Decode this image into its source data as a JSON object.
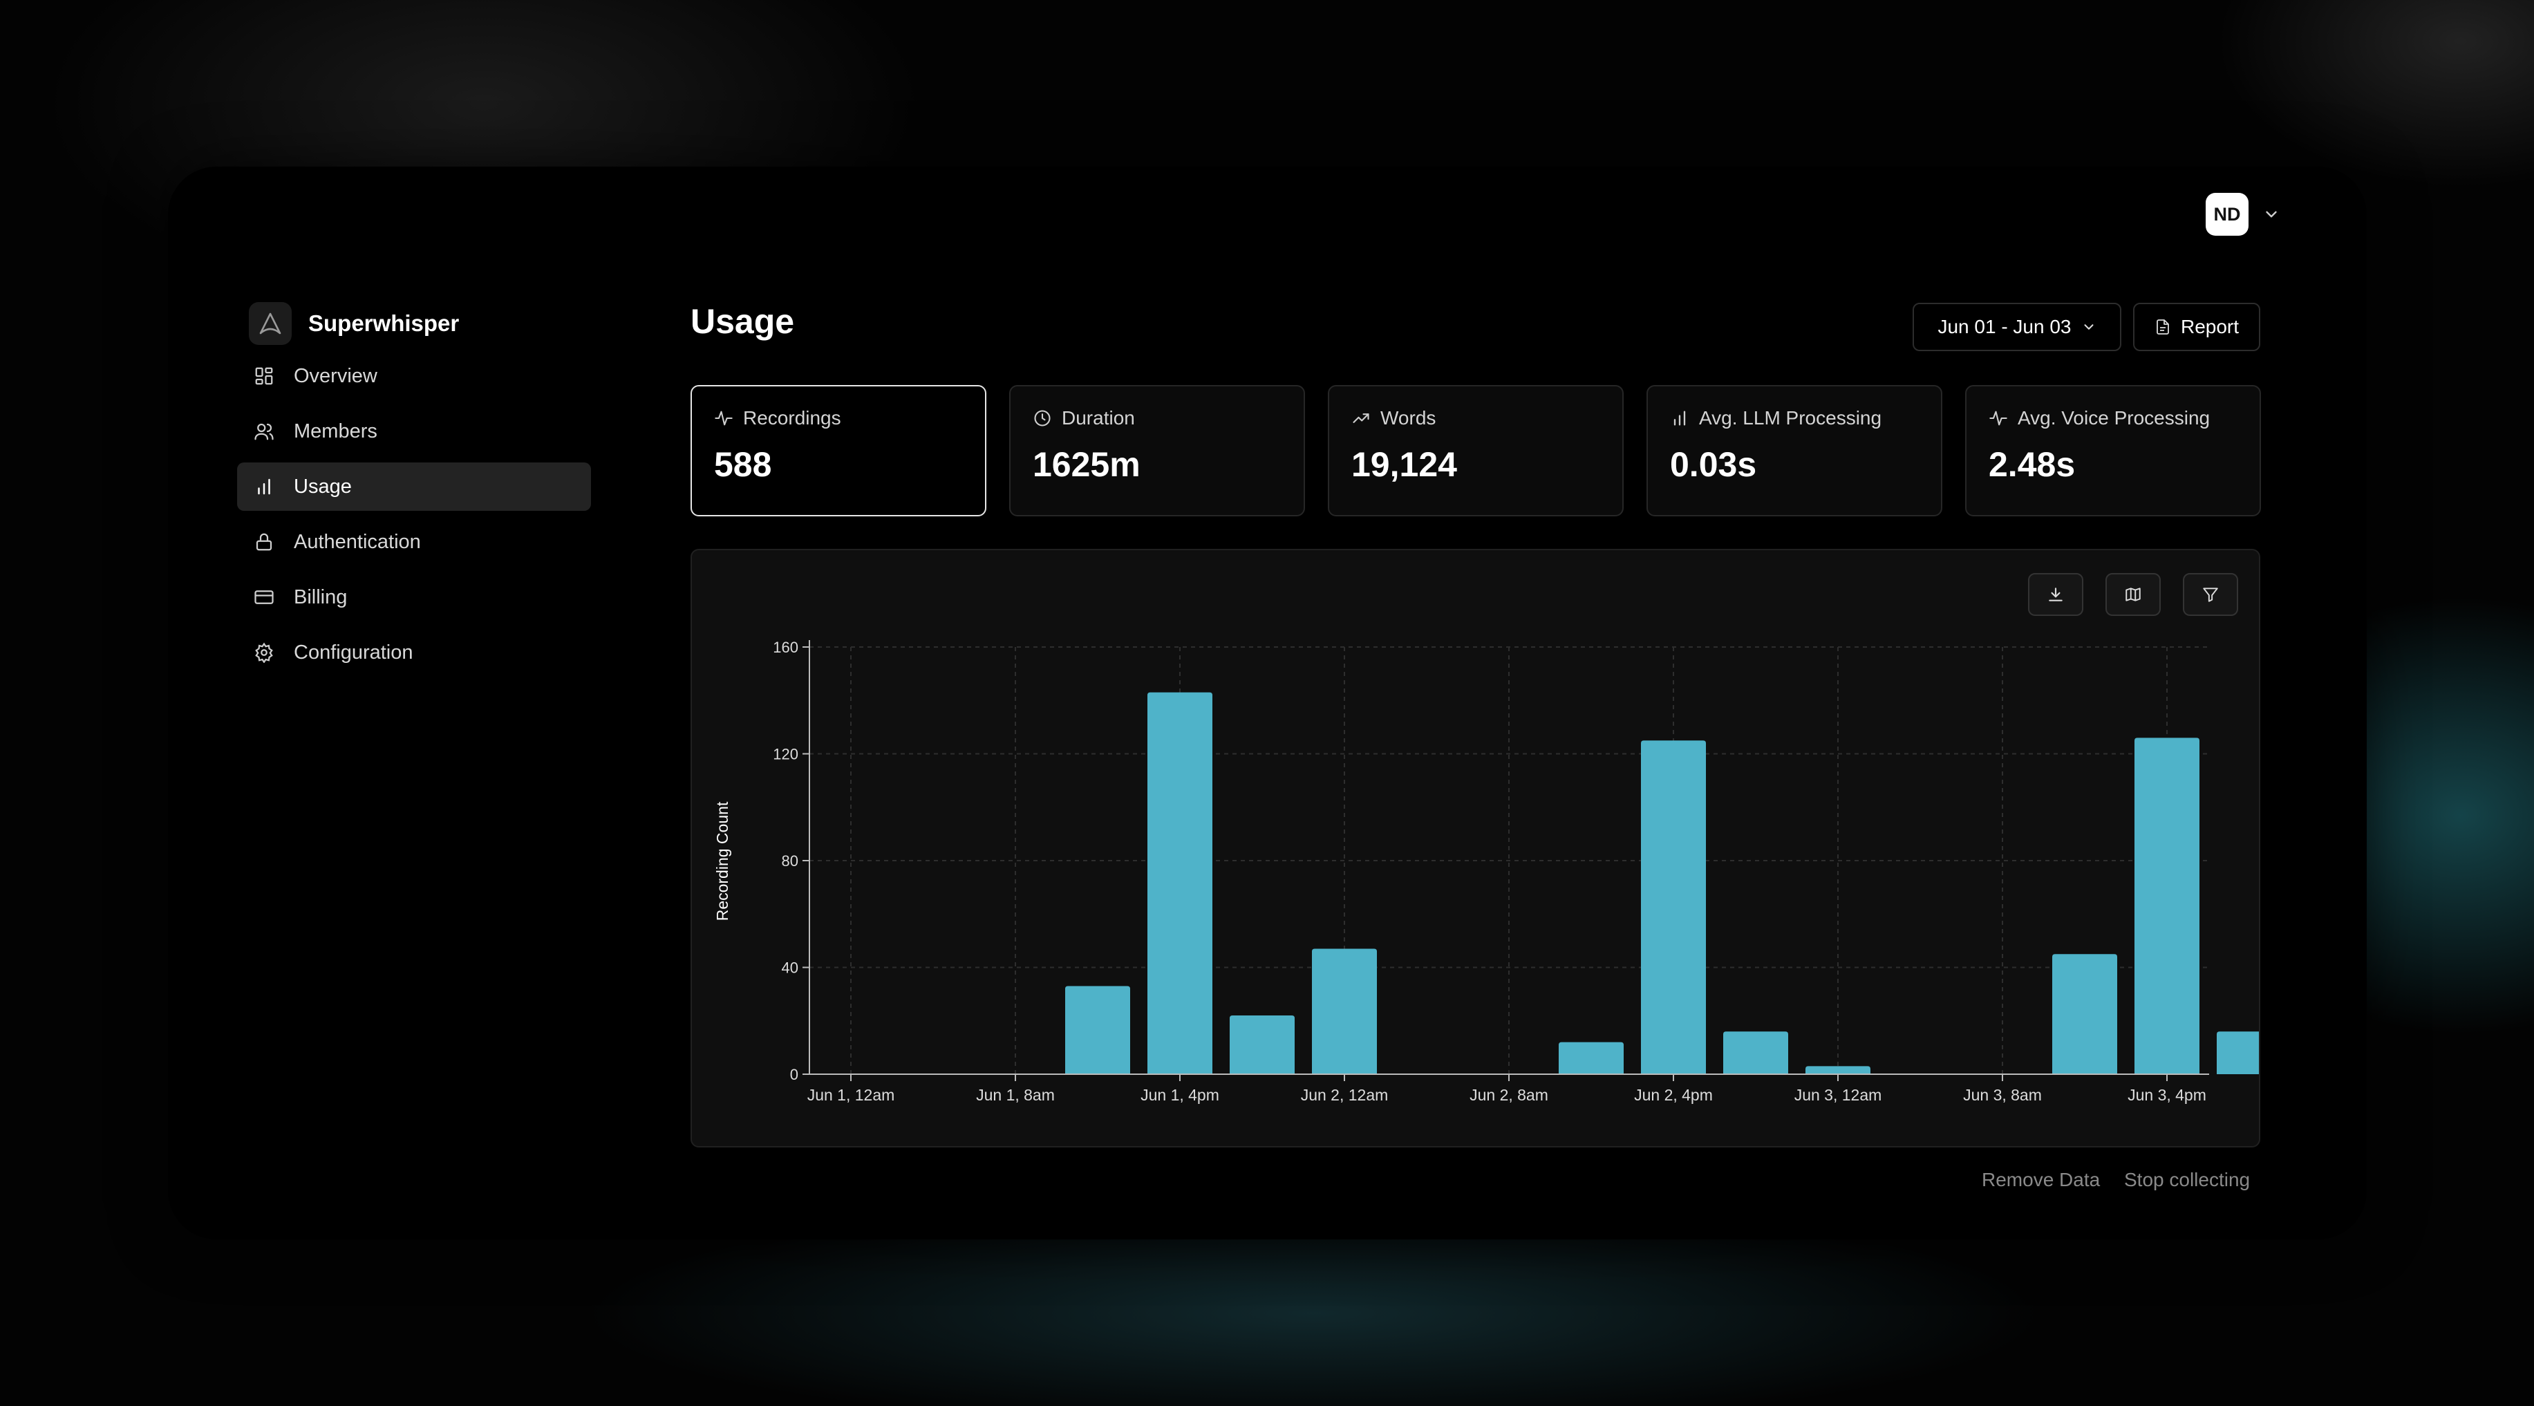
{
  "account": {
    "initials": "ND"
  },
  "brand": {
    "name": "Superwhisper"
  },
  "sidebar": {
    "items": [
      {
        "label": "Overview",
        "icon": "grid-icon",
        "active": false
      },
      {
        "label": "Members",
        "icon": "users-icon",
        "active": false
      },
      {
        "label": "Usage",
        "icon": "bar-chart-icon",
        "active": true
      },
      {
        "label": "Authentication",
        "icon": "lock-icon",
        "active": false
      },
      {
        "label": "Billing",
        "icon": "credit-card-icon",
        "active": false
      },
      {
        "label": "Configuration",
        "icon": "gear-icon",
        "active": false
      }
    ]
  },
  "header": {
    "title": "Usage",
    "date_range": "Jun 01 - Jun 03",
    "report_label": "Report"
  },
  "stats": [
    {
      "label": "Recordings",
      "value": "588",
      "icon": "activity-icon",
      "selected": true
    },
    {
      "label": "Duration",
      "value": "1625m",
      "icon": "clock-icon",
      "selected": false
    },
    {
      "label": "Words",
      "value": "19,124",
      "icon": "trending-up-icon",
      "selected": false
    },
    {
      "label": "Avg. LLM Processing",
      "value": "0.03s",
      "icon": "bar-chart-icon",
      "selected": false
    },
    {
      "label": "Avg. Voice Processing",
      "value": "2.48s",
      "icon": "activity-icon",
      "selected": false
    }
  ],
  "chart_toolbar": [
    "download-icon",
    "map-icon",
    "filter-icon"
  ],
  "chart_data": {
    "type": "bar",
    "ylabel": "Recording Count",
    "ylim": [
      0,
      160
    ],
    "yticks": [
      0,
      40,
      80,
      120,
      160
    ],
    "xticks": [
      "Jun 1, 12am",
      "Jun 1, 8am",
      "Jun 1, 4pm",
      "Jun 2, 12am",
      "Jun 2, 8am",
      "Jun 2, 4pm",
      "Jun 3, 12am",
      "Jun 3, 8am",
      "Jun 3, 4pm"
    ],
    "bins_per_tick": 2,
    "bar_color": "#4fb3c9",
    "grid": true,
    "bars": [
      {
        "start": "Jun 1, 4am",
        "value": 33
      },
      {
        "start": "Jun 1, 8am",
        "value": 143
      },
      {
        "start": "Jun 1, 12pm",
        "value": 22
      },
      {
        "start": "Jun 1, 4pm",
        "value": 47
      },
      {
        "start": "Jun 2, 4am",
        "value": 12
      },
      {
        "start": "Jun 2, 8am",
        "value": 125
      },
      {
        "start": "Jun 2, 12pm",
        "value": 16
      },
      {
        "start": "Jun 2, 4pm",
        "value": 3
      },
      {
        "start": "Jun 3, 4am",
        "value": 45
      },
      {
        "start": "Jun 3, 8am",
        "value": 126
      },
      {
        "start": "Jun 3, 12pm",
        "value": 16
      }
    ],
    "bar_slots": [
      3,
      4,
      5,
      6,
      9,
      10,
      11,
      12,
      15,
      16,
      17
    ]
  },
  "footer": {
    "remove_label": "Remove Data",
    "stop_label": "Stop collecting"
  },
  "colors": {
    "accent": "#4fb3c9",
    "background": "#000000",
    "card": "#0f0f0f"
  }
}
